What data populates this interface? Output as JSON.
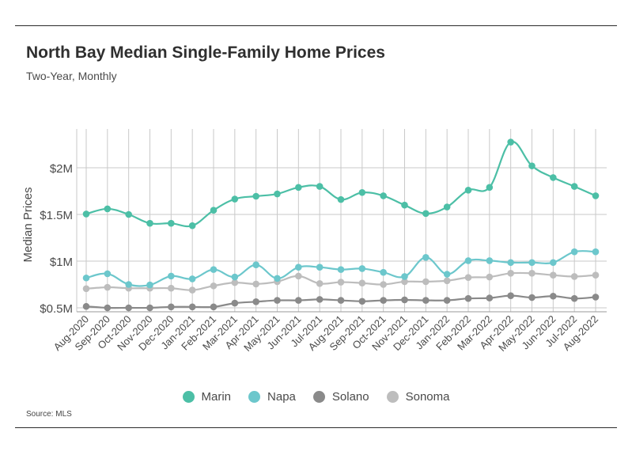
{
  "title": "North Bay Median Single-Family Home Prices",
  "subtitle": "Two-Year, Monthly",
  "source": "Source:  MLS",
  "chart_data": {
    "type": "line",
    "title": "North Bay Median Single-Family Home Prices",
    "subtitle": "Two-Year, Monthly",
    "xlabel": "",
    "ylabel": "Median Prices",
    "ylim": [
      380000,
      2500000
    ],
    "yticks": [
      500000,
      1000000,
      1500000,
      2000000
    ],
    "ytick_labels": [
      "$0.5M",
      "$1M",
      "$1.5M",
      "$2M"
    ],
    "grid": true,
    "legend_position": "bottom",
    "categories": [
      "Aug-2020",
      "Sep-2020",
      "Oct-2020",
      "Nov-2020",
      "Dec-2020",
      "Jan-2021",
      "Feb-2021",
      "Mar-2021",
      "Apr-2021",
      "May-2021",
      "Jun-2021",
      "Jul-2021",
      "Aug-2021",
      "Sep-2021",
      "Oct-2021",
      "Nov-2021",
      "Dec-2021",
      "Jan-2022",
      "Feb-2022",
      "Mar-2022",
      "Apr-2022",
      "May-2022",
      "Jun-2022",
      "Jul-2022",
      "Aug-2022"
    ],
    "series": [
      {
        "name": "Marin",
        "color": "#4cbfa6",
        "values": [
          1505000,
          1560000,
          1500000,
          1405000,
          1405000,
          1380000,
          1545000,
          1665000,
          1695000,
          1720000,
          1790000,
          1800000,
          1660000,
          1735000,
          1700000,
          1600000,
          1510000,
          1580000,
          1760000,
          1790000,
          2275000,
          2020000,
          1895000,
          1800000,
          1700000
        ]
      },
      {
        "name": "Napa",
        "color": "#6cc7cc",
        "values": [
          820000,
          865000,
          750000,
          745000,
          840000,
          810000,
          910000,
          830000,
          960000,
          815000,
          935000,
          935000,
          910000,
          920000,
          880000,
          835000,
          1040000,
          860000,
          1005000,
          1005000,
          985000,
          985000,
          985000,
          1100000,
          1100000
        ]
      },
      {
        "name": "Solano",
        "color": "#8a8a8a",
        "values": [
          515000,
          500000,
          500000,
          500000,
          510000,
          510000,
          510000,
          550000,
          565000,
          580000,
          580000,
          590000,
          580000,
          570000,
          580000,
          585000,
          580000,
          580000,
          600000,
          605000,
          630000,
          610000,
          625000,
          600000,
          615000
        ]
      },
      {
        "name": "Sonoma",
        "color": "#bdbdbd",
        "values": [
          705000,
          720000,
          710000,
          710000,
          710000,
          690000,
          735000,
          770000,
          755000,
          780000,
          840000,
          760000,
          775000,
          765000,
          750000,
          780000,
          780000,
          790000,
          825000,
          830000,
          870000,
          870000,
          850000,
          835000,
          850000
        ]
      }
    ]
  }
}
